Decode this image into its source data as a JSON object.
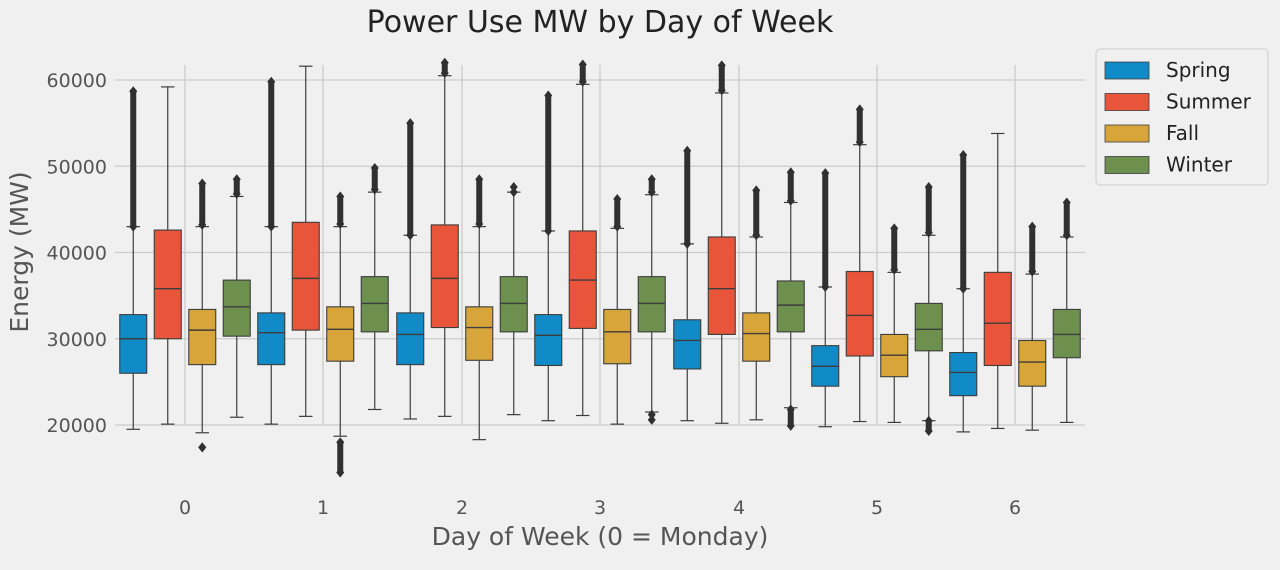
{
  "chart_data": {
    "type": "box",
    "title": "Power Use MW by Day of Week",
    "xlabel": "Day of Week (0 = Monday)",
    "ylabel": "Energy (MW)",
    "categories": [
      "0",
      "1",
      "2",
      "3",
      "4",
      "5",
      "6"
    ],
    "ylim": [
      12500,
      63000
    ],
    "yticks": [
      20000,
      30000,
      40000,
      50000,
      60000
    ],
    "ytick_labels": [
      "20000",
      "30000",
      "40000",
      "50000",
      "60000"
    ],
    "grid": true,
    "legend_position": "outside-top-right",
    "series": [
      {
        "name": "Spring",
        "color": "#118bc8",
        "boxes": [
          {
            "whisker_low": 19500,
            "q1": 26000,
            "median": 30000,
            "q3": 32800,
            "whisker_high": 43000,
            "outliers_high": [
              43000,
              58700
            ],
            "outliers_low": []
          },
          {
            "whisker_low": 20100,
            "q1": 27000,
            "median": 30700,
            "q3": 33000,
            "whisker_high": 43000,
            "outliers_high": [
              43000,
              59800
            ],
            "outliers_low": []
          },
          {
            "whisker_low": 20700,
            "q1": 27000,
            "median": 30500,
            "q3": 33000,
            "whisker_high": 42000,
            "outliers_high": [
              42000,
              55000
            ],
            "outliers_low": []
          },
          {
            "whisker_low": 20500,
            "q1": 26900,
            "median": 30400,
            "q3": 32800,
            "whisker_high": 42500,
            "outliers_high": [
              42500,
              58200
            ],
            "outliers_low": []
          },
          {
            "whisker_low": 20500,
            "q1": 26500,
            "median": 29800,
            "q3": 32200,
            "whisker_high": 41000,
            "outliers_high": [
              41000,
              51800
            ],
            "outliers_low": []
          },
          {
            "whisker_low": 19800,
            "q1": 24500,
            "median": 26800,
            "q3": 29200,
            "whisker_high": 36000,
            "outliers_high": [
              36000,
              49200
            ],
            "outliers_low": []
          },
          {
            "whisker_low": 19200,
            "q1": 23400,
            "median": 26100,
            "q3": 28400,
            "whisker_high": 35800,
            "outliers_high": [
              35800,
              51300
            ],
            "outliers_low": []
          }
        ]
      },
      {
        "name": "Summer",
        "color": "#e8553a",
        "boxes": [
          {
            "whisker_low": 20100,
            "q1": 30000,
            "median": 35800,
            "q3": 42600,
            "whisker_high": 59200,
            "outliers_high": [],
            "outliers_low": []
          },
          {
            "whisker_low": 21000,
            "q1": 31000,
            "median": 37000,
            "q3": 43500,
            "whisker_high": 61600,
            "outliers_high": [],
            "outliers_low": []
          },
          {
            "whisker_low": 21000,
            "q1": 31300,
            "median": 37000,
            "q3": 43200,
            "whisker_high": 60500,
            "outliers_high": [
              60800,
              62000
            ],
            "outliers_low": []
          },
          {
            "whisker_low": 21100,
            "q1": 31200,
            "median": 36800,
            "q3": 42500,
            "whisker_high": 59500,
            "outliers_high": [
              59800,
              61800
            ],
            "outliers_low": []
          },
          {
            "whisker_low": 20200,
            "q1": 30500,
            "median": 35800,
            "q3": 41800,
            "whisker_high": 58500,
            "outliers_high": [
              58800,
              61700
            ],
            "outliers_low": []
          },
          {
            "whisker_low": 20400,
            "q1": 28000,
            "median": 32700,
            "q3": 37800,
            "whisker_high": 52500,
            "outliers_high": [
              52800,
              56600
            ],
            "outliers_low": []
          },
          {
            "whisker_low": 19600,
            "q1": 26900,
            "median": 31800,
            "q3": 37700,
            "whisker_high": 53800,
            "outliers_high": [],
            "outliers_low": []
          }
        ]
      },
      {
        "name": "Fall",
        "color": "#d8a53a",
        "boxes": [
          {
            "whisker_low": 19100,
            "q1": 27000,
            "median": 31000,
            "q3": 33400,
            "whisker_high": 43000,
            "outliers_high": [
              43200,
              48000
            ],
            "outliers_low": [
              17400
            ]
          },
          {
            "whisker_low": 18700,
            "q1": 27400,
            "median": 31100,
            "q3": 33700,
            "whisker_high": 43000,
            "outliers_high": [
              43300,
              46500
            ],
            "outliers_low": [
              14500,
              18000
            ]
          },
          {
            "whisker_low": 18300,
            "q1": 27500,
            "median": 31300,
            "q3": 33700,
            "whisker_high": 43000,
            "outliers_high": [
              43300,
              48500
            ],
            "outliers_low": []
          },
          {
            "whisker_low": 20100,
            "q1": 27100,
            "median": 30800,
            "q3": 33400,
            "whisker_high": 42800,
            "outliers_high": [
              43000,
              46200
            ],
            "outliers_low": []
          },
          {
            "whisker_low": 20600,
            "q1": 27400,
            "median": 30600,
            "q3": 33000,
            "whisker_high": 41800,
            "outliers_high": [
              42000,
              47200
            ],
            "outliers_low": []
          },
          {
            "whisker_low": 20300,
            "q1": 25600,
            "median": 28100,
            "q3": 30500,
            "whisker_high": 37700,
            "outliers_high": [
              38000,
              42800
            ],
            "outliers_low": []
          },
          {
            "whisker_low": 19400,
            "q1": 24500,
            "median": 27300,
            "q3": 29800,
            "whisker_high": 37500,
            "outliers_high": [
              37800,
              43000
            ],
            "outliers_low": []
          }
        ]
      },
      {
        "name": "Winter",
        "color": "#6d904f",
        "boxes": [
          {
            "whisker_low": 20900,
            "q1": 30300,
            "median": 33700,
            "q3": 36800,
            "whisker_high": 46500,
            "outliers_high": [
              46800,
              48500
            ],
            "outliers_low": []
          },
          {
            "whisker_low": 21800,
            "q1": 30800,
            "median": 34100,
            "q3": 37200,
            "whisker_high": 47000,
            "outliers_high": [
              47300,
              49800
            ],
            "outliers_low": []
          },
          {
            "whisker_low": 21200,
            "q1": 30800,
            "median": 34100,
            "q3": 37200,
            "whisker_high": 47000,
            "outliers_high": [
              47000,
              47600
            ],
            "outliers_low": []
          },
          {
            "whisker_low": 21500,
            "q1": 30800,
            "median": 34100,
            "q3": 37200,
            "whisker_high": 46700,
            "outliers_high": [
              47000,
              48500
            ],
            "outliers_low": [
              20600,
              21200
            ]
          },
          {
            "whisker_low": 22000,
            "q1": 30800,
            "median": 33900,
            "q3": 36700,
            "whisker_high": 45800,
            "outliers_high": [
              46000,
              49300
            ],
            "outliers_low": [
              19900,
              21800
            ]
          },
          {
            "whisker_low": 20500,
            "q1": 28600,
            "median": 31100,
            "q3": 34100,
            "whisker_high": 42000,
            "outliers_high": [
              42300,
              47600
            ],
            "outliers_low": [
              19300,
              20500
            ]
          },
          {
            "whisker_low": 20300,
            "q1": 27800,
            "median": 30500,
            "q3": 33400,
            "whisker_high": 41800,
            "outliers_high": [
              42000,
              45800
            ],
            "outliers_low": []
          }
        ]
      }
    ]
  }
}
